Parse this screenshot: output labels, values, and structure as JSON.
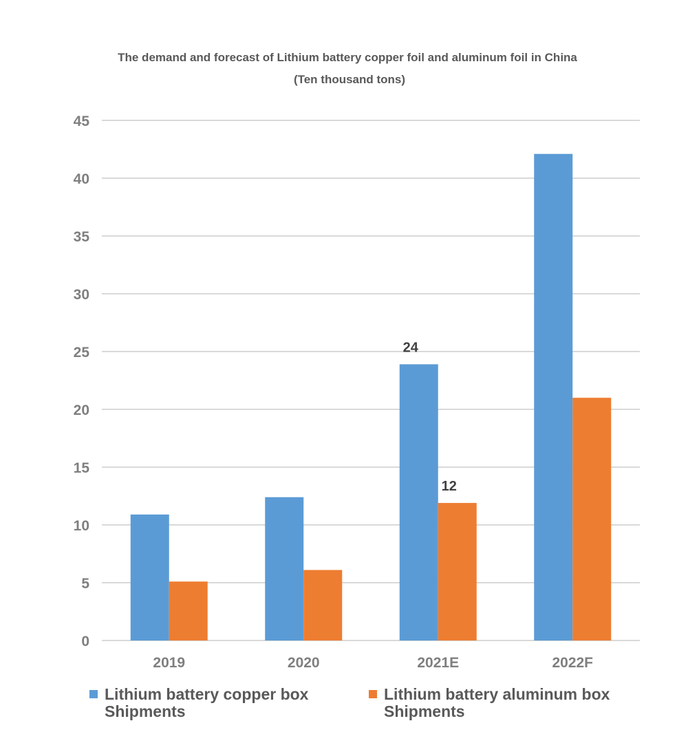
{
  "chart_data": {
    "type": "bar",
    "title": "The demand and forecast of Lithium battery copper foil and aluminum foil in China",
    "subtitle": "(Ten thousand tons)",
    "categories": [
      "2019",
      "2020",
      "2021E",
      "2022F"
    ],
    "series": [
      {
        "name": "Lithium battery copper box Shipments",
        "name_lines": [
          "Lithium battery copper box",
          "Shipments"
        ],
        "color": "#5b9bd5",
        "values": [
          10.9,
          12.4,
          23.9,
          42.1
        ],
        "data_labels": [
          "",
          "",
          "24",
          ""
        ]
      },
      {
        "name": "Lithium battery aluminum box Shipments",
        "name_lines": [
          "Lithium battery aluminum box",
          "Shipments"
        ],
        "color": "#ed7d31",
        "values": [
          5.1,
          6.1,
          11.9,
          21.0
        ],
        "data_labels": [
          "",
          "",
          "12",
          ""
        ]
      }
    ],
    "ylim": [
      0,
      45
    ],
    "yticks": [
      "0",
      "5",
      "10",
      "15",
      "20",
      "25",
      "30",
      "35",
      "40",
      "45"
    ],
    "grid": true,
    "gridColor": "#d9d9d9",
    "legend": "bottom",
    "xlabel": "",
    "ylabel": ""
  }
}
